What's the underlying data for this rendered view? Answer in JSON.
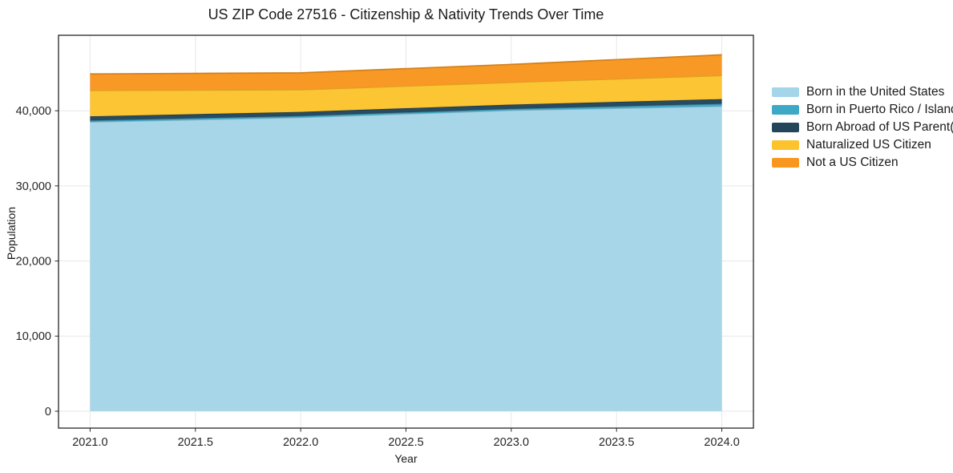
{
  "chart_data": {
    "type": "area",
    "stacked": true,
    "title": "US ZIP Code 27516 - Citizenship & Nativity Trends Over Time",
    "xlabel": "Year",
    "ylabel": "Population",
    "x": [
      2021,
      2022,
      2023,
      2024
    ],
    "series": [
      {
        "name": "Born in the United States",
        "color": "#a5d5e8",
        "values": [
          38500,
          39100,
          40050,
          40600
        ]
      },
      {
        "name": "Born in Puerto Rico / Islands",
        "color": "#3ea8c7",
        "values": [
          200,
          200,
          200,
          320
        ]
      },
      {
        "name": "Born Abroad of US Parent(s)",
        "color": "#23455a",
        "values": [
          550,
          550,
          570,
          630
        ]
      },
      {
        "name": "Naturalized US Citizen",
        "color": "#fcc32d",
        "values": [
          3450,
          2950,
          2950,
          3150
        ]
      },
      {
        "name": "Not a US Citizen",
        "color": "#f8961f",
        "values": [
          2200,
          2250,
          2400,
          2750
        ]
      }
    ],
    "xlim": [
      2020.85,
      2024.15
    ],
    "ylim": [
      -2250,
      50050
    ],
    "xticks": {
      "values": [
        2021.0,
        2021.5,
        2022.0,
        2022.5,
        2023.0,
        2023.5,
        2024.0
      ],
      "labels": [
        "2021.0",
        "2021.5",
        "2022.0",
        "2022.5",
        "2023.0",
        "2023.5",
        "2024.0"
      ]
    },
    "yticks": {
      "values": [
        0,
        10000,
        20000,
        30000,
        40000
      ],
      "labels": [
        "0",
        "10,000",
        "20,000",
        "30,000",
        "40,000"
      ]
    },
    "grid": true,
    "legend_position": "right outside"
  },
  "colors": {
    "background": "#ffffff",
    "grid": "#e7e7e7",
    "spine": "#262626",
    "tick_text": "#262626"
  }
}
